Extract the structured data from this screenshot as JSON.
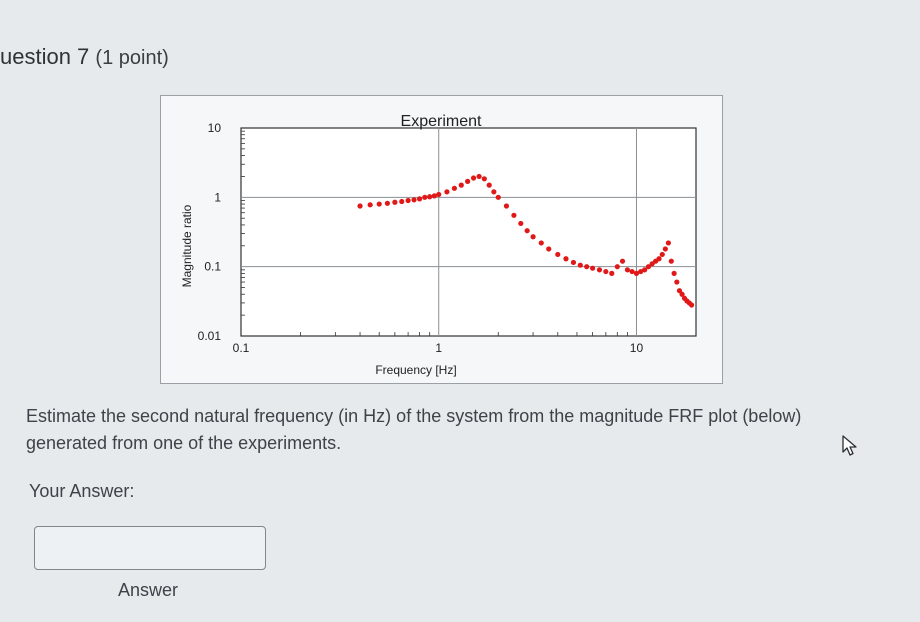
{
  "question": {
    "title": "uestion 7",
    "points": "(1 point)"
  },
  "prompt": "Estimate the second natural frequency (in Hz) of the system from the magnitude FRF plot (below) generated from one of the experiments.",
  "answer": {
    "label": "Your Answer:",
    "value": "",
    "caption": "Answer"
  },
  "cursor_icon": "pointer-arrow-icon",
  "chart_data": {
    "type": "scatter",
    "title": "Experiment",
    "xlabel": "Frequency [Hz]",
    "ylabel": "Magnitude ratio",
    "x_scale": "log",
    "y_scale": "log",
    "xlim": [
      0.1,
      20
    ],
    "ylim": [
      0.01,
      10
    ],
    "x_ticks": [
      "0.1",
      "1",
      "10"
    ],
    "y_ticks": [
      "10",
      "1",
      "0.1",
      "0.01"
    ],
    "grid": true,
    "series": [
      {
        "color": "#e01818",
        "x": [
          0.4,
          0.45,
          0.5,
          0.55,
          0.6,
          0.65,
          0.7,
          0.75,
          0.8,
          0.85,
          0.9,
          0.95,
          1.0,
          1.1,
          1.2,
          1.3,
          1.4,
          1.5,
          1.6,
          1.7,
          1.8,
          1.9,
          2.0,
          2.2,
          2.4,
          2.6,
          2.8,
          3.0,
          3.3,
          3.6,
          4.0,
          4.4,
          4.8,
          5.2,
          5.6,
          6.0,
          6.5,
          7.0,
          7.5,
          8.0,
          8.5,
          9.0,
          9.5,
          10.0,
          10.5,
          11.0,
          11.5,
          12.0,
          12.5,
          13.0,
          13.5,
          14.0,
          14.5,
          15.0,
          15.5,
          16.0,
          16.5,
          17.0,
          17.5,
          18.0,
          18.5,
          19.0
        ],
        "y": [
          0.75,
          0.78,
          0.8,
          0.82,
          0.85,
          0.87,
          0.9,
          0.92,
          0.95,
          1.0,
          1.02,
          1.05,
          1.1,
          1.2,
          1.35,
          1.5,
          1.7,
          1.9,
          2.0,
          1.85,
          1.5,
          1.2,
          1.0,
          0.75,
          0.55,
          0.42,
          0.33,
          0.27,
          0.22,
          0.18,
          0.15,
          0.13,
          0.115,
          0.105,
          0.1,
          0.095,
          0.09,
          0.085,
          0.08,
          0.1,
          0.12,
          0.09,
          0.085,
          0.08,
          0.085,
          0.09,
          0.1,
          0.11,
          0.12,
          0.13,
          0.15,
          0.18,
          0.22,
          0.12,
          0.08,
          0.06,
          0.045,
          0.04,
          0.035,
          0.032,
          0.03,
          0.028
        ]
      }
    ]
  }
}
